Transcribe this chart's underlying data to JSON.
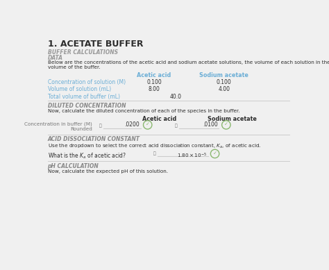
{
  "background_color": "#f0f0f0",
  "title": "1. ACETATE BUFFER",
  "section1_label": "BUFFER CALCULATIONS",
  "section2_label": "DATA",
  "desc1": "Below are the concentrations of the acetic acid and sodium acetate solutions, the volume of each solution in the buffer and the total\nvolume of the buffer.",
  "col_header1": "Acetic acid",
  "col_header2": "Sodium acetate",
  "row1_label": "Concentration of solution (M)",
  "row1_val1": "0.100",
  "row1_val2": "0.100",
  "row2_label": "Volume of solution (mL)",
  "row2_val1": "8.00",
  "row2_val2": "4.00",
  "row3_label": "Total volume of buffer (mL)",
  "row3_val1": "40.0",
  "section3_label": "DILUTED CONCENTRATION",
  "desc2": "Now, calculate the diluted concentration of each of the species in the buffer.",
  "col2_header1": "Acetic acid",
  "col2_header2": "Sodium acetate",
  "input_val1": ".0200",
  "input_val2": ".0100",
  "section4_label": "ACID DISSOCIATION CONSTANT",
  "desc3_pre": "Use the dropdown to select the correct acid dissociation constant, ",
  "desc3_post": ", of acetic acid.",
  "ka_label_pre": "What is the ",
  "ka_label_post": " of acetic acid?",
  "ka_value": "1.80 × 10⁻⁵",
  "section5_label": "pH CALCULATION",
  "desc4": "Now, calculate the expected pH of this solution.",
  "blue_color": "#6baed6",
  "label_color": "#6baed6",
  "text_color": "#2d2d2d",
  "light_text": "#777777",
  "section_header_color": "#999999",
  "italic_section_color": "#888888",
  "check_color": "#8ab870",
  "check_border": "#8ab870",
  "line_color": "#cccccc",
  "white": "#ffffff",
  "input_border": "#cccccc"
}
